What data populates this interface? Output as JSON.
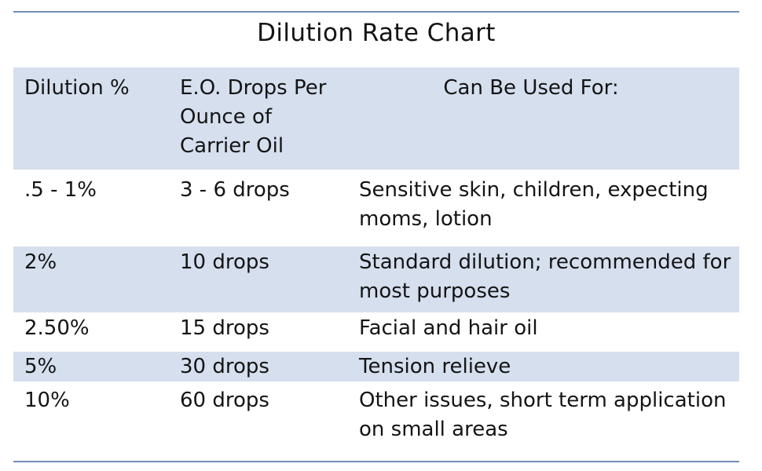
{
  "document": {
    "title": "Dilution Rate Chart",
    "colors": {
      "header_fill": "#d5dfee",
      "rule": "#6f8eb5",
      "text": "#141414",
      "background": "#ffffff"
    }
  },
  "table": {
    "headers": {
      "dilution": "Dilution %",
      "drops": "E.O. Drops Per Ounce of Carrier Oil",
      "use": "Can Be Used For:"
    },
    "rows": [
      {
        "dilution": ".5 - 1%",
        "drops": "3 - 6 drops",
        "use": "Sensitive skin, children, expecting moms, lotion"
      },
      {
        "dilution": "2%",
        "drops": "10 drops",
        "use": "Standard dilution; recommended for most purposes"
      },
      {
        "dilution": "2.50%",
        "drops": "15 drops",
        "use": "Facial and hair oil"
      },
      {
        "dilution": "5%",
        "drops": "30 drops",
        "use": "Tension relieve"
      },
      {
        "dilution": "10%",
        "drops": "60 drops",
        "use": "Other issues, short term application on small areas"
      }
    ]
  }
}
